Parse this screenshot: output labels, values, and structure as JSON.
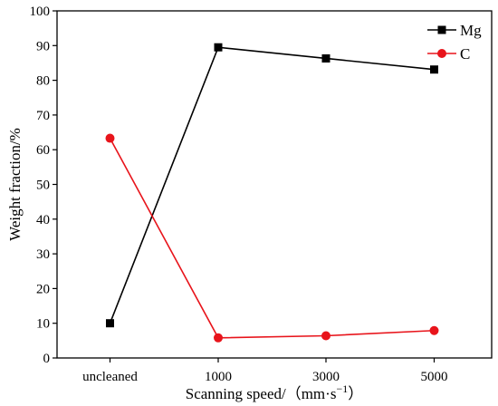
{
  "chart_data": {
    "type": "line",
    "categories": [
      "uncleaned",
      "1000",
      "3000",
      "5000"
    ],
    "xlabel": "Scanning speed/（mm·s",
    "xlabel_superscript": "−1",
    "xlabel_close": "）",
    "ylabel": "Weight fraction/%",
    "ylim": [
      0,
      100
    ],
    "yticks": [
      0,
      10,
      20,
      30,
      40,
      50,
      60,
      70,
      80,
      90,
      100
    ],
    "grid": false,
    "legend_position": "top-right",
    "series": [
      {
        "name": "Mg",
        "marker": "square",
        "color": "#000000",
        "values": [
          10.0,
          89.5,
          86.3,
          83.1
        ]
      },
      {
        "name": "C",
        "marker": "circle",
        "color": "#e8141b",
        "values": [
          63.3,
          5.8,
          6.4,
          7.9
        ]
      }
    ]
  }
}
